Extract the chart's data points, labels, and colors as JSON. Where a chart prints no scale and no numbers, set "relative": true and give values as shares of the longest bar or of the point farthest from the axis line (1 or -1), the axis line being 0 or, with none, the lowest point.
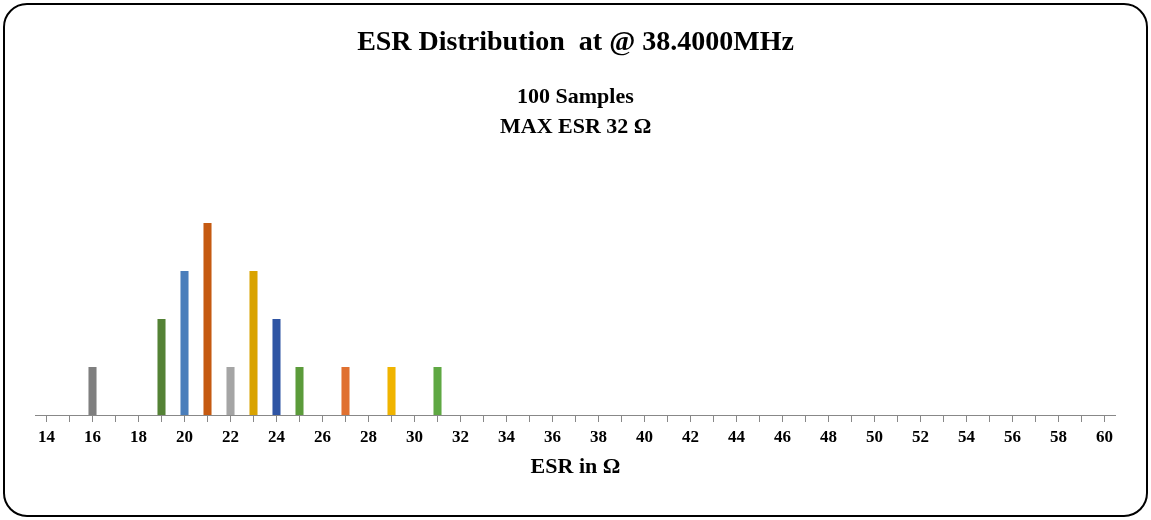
{
  "chart_data": {
    "type": "bar",
    "title": "ESR Distribution  at @ 38.4000MHz",
    "subtitle": "100 Samples",
    "annotations": [
      "MAX ESR 32 Ω"
    ],
    "xlabel": "ESR in Ω",
    "relative": true,
    "grid": false,
    "legend": false,
    "categories": [
      "14",
      null,
      "16",
      null,
      "18",
      null,
      "20",
      null,
      "22",
      null,
      "24",
      null,
      "26",
      null,
      "28",
      null,
      "30",
      null,
      "32",
      null,
      "34",
      null,
      "36",
      null,
      "38",
      null,
      "40",
      null,
      "42",
      null,
      "44",
      null,
      "46",
      null,
      "48",
      null,
      "50",
      null,
      "52",
      null,
      "54",
      null,
      "56",
      null,
      "58",
      null,
      "60"
    ],
    "values": [
      null,
      null,
      0.25,
      null,
      null,
      0.5,
      0.75,
      1,
      0.25,
      0.75,
      0.5,
      0.25,
      null,
      0.25,
      null,
      0.25,
      null,
      0.25,
      null,
      null,
      null,
      null,
      null,
      null,
      null,
      null,
      null,
      null,
      null,
      null,
      null,
      null,
      null,
      null,
      null,
      null,
      null,
      null,
      null,
      null,
      null,
      null,
      null,
      null,
      null,
      null,
      null
    ],
    "colors": [
      "#808080",
      "#808080",
      "#7f7f7f",
      "#808080",
      "#808080",
      "#548235",
      "#4a7ebb",
      "#c55a11",
      "#a5a5a5",
      "#d9a300",
      "#2f55a4",
      "#5b9b3a",
      "#808080",
      "#e07030",
      "#808080",
      "#f0b400",
      "#808080",
      "#5fa843",
      "#808080",
      "#808080",
      "#808080",
      "#808080",
      "#808080",
      "#808080",
      "#808080",
      "#808080",
      "#808080",
      "#808080",
      "#808080",
      "#808080",
      "#808080",
      "#808080",
      "#808080",
      "#808080",
      "#808080",
      "#808080",
      "#808080",
      "#808080",
      "#808080",
      "#808080",
      "#808080",
      "#808080",
      "#808080",
      "#808080",
      "#808080",
      "#808080",
      "#808080"
    ]
  }
}
